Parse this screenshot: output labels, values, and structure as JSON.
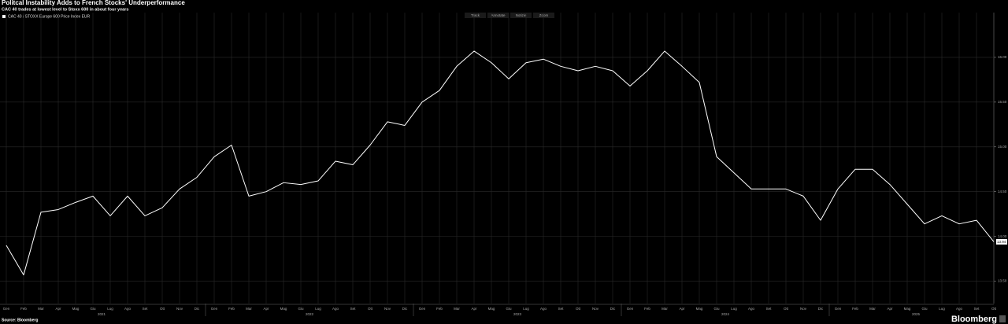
{
  "chart_data": {
    "type": "line",
    "title": "Politcal Instability Adds to French Stocks' Underperformance",
    "subtitle": "CAC 40 trades at lowest level to Stoxx 600 in about four years",
    "categories": [
      "Gen",
      "Feb",
      "Mar",
      "Apr",
      "Mag",
      "Giu",
      "Lug",
      "Ago",
      "Set",
      "Ott",
      "Nov",
      "Dic",
      "Gen",
      "Feb",
      "Mar",
      "Apr",
      "Mag",
      "Giu",
      "Lug",
      "Ago",
      "Set",
      "Ott",
      "Nov",
      "Dic",
      "Gen",
      "Feb",
      "Mar",
      "Apr",
      "Mag",
      "Giu",
      "Lug",
      "Ago",
      "Set",
      "Ott",
      "Nov",
      "Dic",
      "Gen",
      "Feb",
      "Mar",
      "Apr",
      "Mag",
      "Giu",
      "Lug",
      "Ago",
      "Set",
      "Ott",
      "Nov",
      "Dic",
      "Gen",
      "Feb",
      "Mar",
      "Apr",
      "Mag",
      "Giu",
      "Lug",
      "Ago",
      "Set",
      "Ott"
    ],
    "x_groups": [
      "2021",
      "2022",
      "2023",
      "2024",
      "2025"
    ],
    "series": [
      {
        "name": "CAC 40 / STOXX Europe 600 Price Index EUR",
        "color": "#ffffff",
        "values": [
          13.9,
          13.57,
          14.27,
          14.3,
          14.38,
          14.45,
          14.23,
          14.45,
          14.23,
          14.32,
          14.53,
          14.66,
          14.89,
          15.02,
          14.45,
          14.5,
          14.6,
          14.58,
          14.62,
          14.84,
          14.8,
          15.02,
          15.28,
          15.24,
          15.5,
          15.63,
          15.9,
          16.07,
          15.94,
          15.76,
          15.94,
          15.98,
          15.9,
          15.85,
          15.9,
          15.85,
          15.68,
          15.85,
          16.07,
          15.9,
          15.72,
          14.89,
          14.71,
          14.53,
          14.53,
          14.53,
          14.45,
          14.18,
          14.53,
          14.75,
          14.75,
          14.58,
          14.36,
          14.14,
          14.23,
          14.14,
          14.18,
          13.94
        ]
      }
    ],
    "ylim": [
      13.25,
      16.5
    ],
    "yticks": [
      {
        "value": 13.5,
        "label": "13.50"
      },
      {
        "value": 14,
        "label": "14.00"
      },
      {
        "value": 14.5,
        "label": "14.50"
      },
      {
        "value": 15,
        "label": "15.00"
      },
      {
        "value": 15.5,
        "label": "15.50"
      },
      {
        "value": 16,
        "label": "16.00"
      }
    ],
    "grid": true
  },
  "toolbar": [
    "Track",
    "Annotate",
    "Notizie",
    "Zoom"
  ],
  "footer": {
    "source": "Source: Bloomberg",
    "brand": "Bloomberg"
  }
}
